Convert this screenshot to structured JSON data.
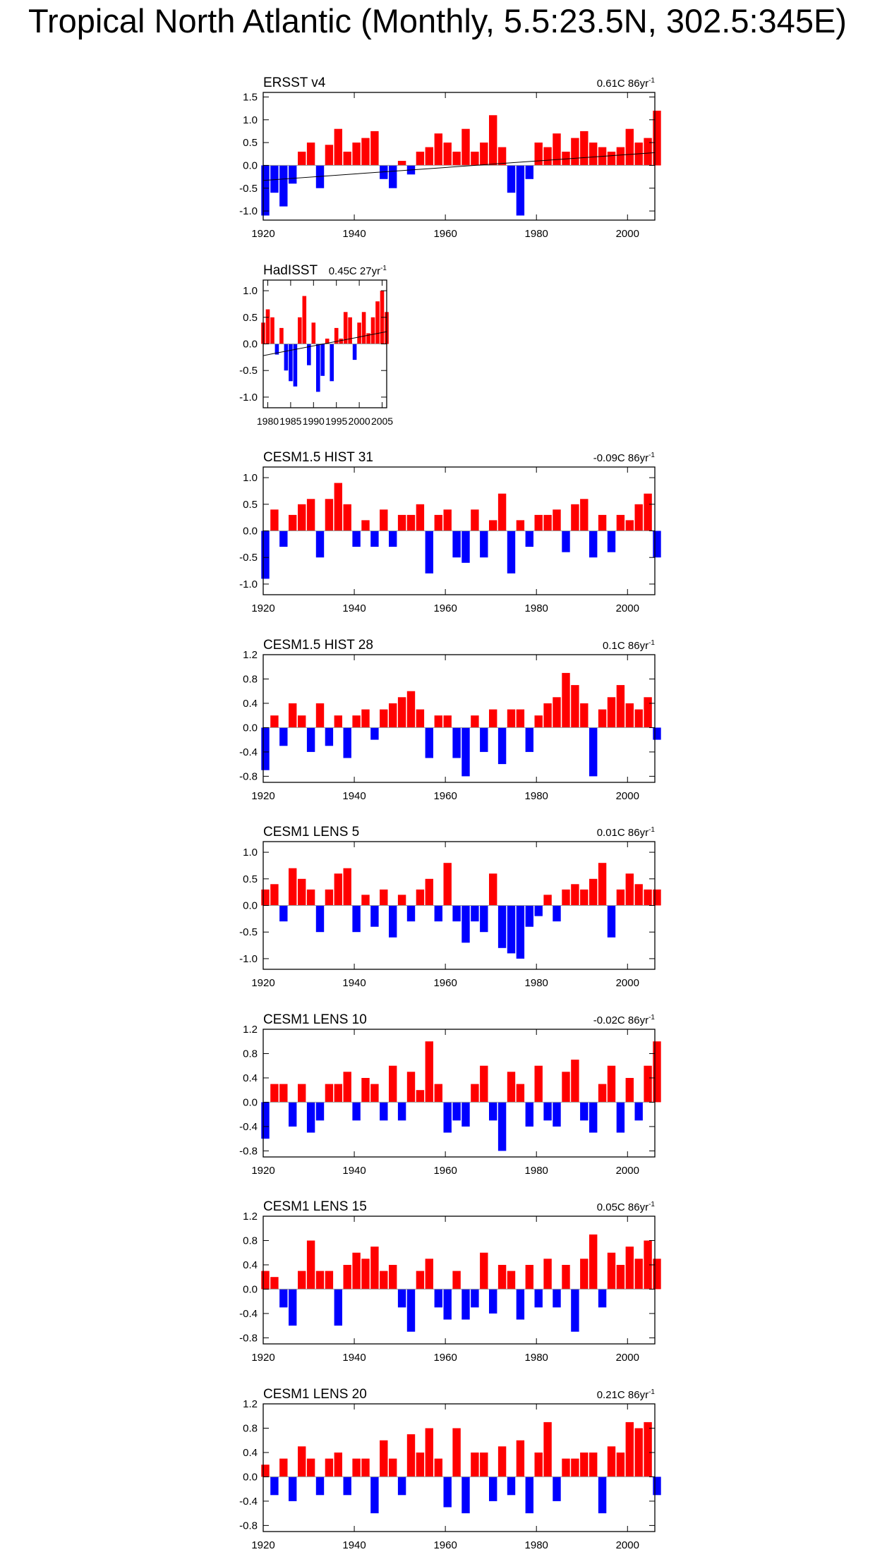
{
  "figure_title": "Tropical North Atlantic (Monthly, 5.5:23.5N, 302.5:345E)",
  "colors": {
    "positive": "#ff0000",
    "negative": "#0000ff",
    "axis": "#000000",
    "zero_line": "#999999"
  },
  "chart_data": [
    {
      "type": "area",
      "title": "ERSST v4",
      "trend_label": {
        "value": "0.61C 86yr",
        "exponent": "-1"
      },
      "xlim": [
        1920,
        2006
      ],
      "xticks": [
        1920,
        1940,
        1960,
        1980,
        2000
      ],
      "ylim": [
        -1.2,
        1.6
      ],
      "yticks": [
        -1.0,
        -0.5,
        0.0,
        0.5,
        1.0,
        1.5
      ],
      "ytick_labels": [
        "-1.0",
        "-0.5",
        "0.0",
        "0.5",
        "1.0",
        "1.5"
      ],
      "trend_line": {
        "x": [
          1920,
          2006
        ],
        "y": [
          -0.33,
          0.28
        ]
      },
      "series": [
        {
          "x": [
            1920,
            1922,
            1924,
            1926,
            1928,
            1930,
            1932,
            1934,
            1936,
            1938,
            1940,
            1942,
            1944,
            1946,
            1948,
            1950,
            1952,
            1954,
            1956,
            1958,
            1960,
            1962,
            1964,
            1966,
            1968,
            1970,
            1972,
            1974,
            1976,
            1978,
            1980,
            1982,
            1984,
            1986,
            1988,
            1990,
            1992,
            1994,
            1996,
            1998,
            2000,
            2002,
            2004,
            2006
          ],
          "y": [
            -1.1,
            -0.6,
            -0.9,
            -0.4,
            0.3,
            0.5,
            -0.5,
            0.45,
            0.8,
            0.3,
            0.5,
            0.6,
            0.75,
            -0.3,
            -0.5,
            0.1,
            -0.2,
            0.3,
            0.4,
            0.7,
            0.5,
            0.3,
            0.8,
            0.3,
            0.5,
            1.1,
            0.4,
            -0.6,
            -1.1,
            -0.3,
            0.5,
            0.4,
            0.7,
            0.3,
            0.6,
            0.75,
            0.5,
            0.4,
            0.3,
            0.4,
            0.8,
            0.5,
            0.6,
            1.2
          ]
        }
      ]
    },
    {
      "type": "area",
      "title": "HadISST",
      "trend_label": {
        "value": "0.45C 27yr",
        "exponent": "-1"
      },
      "xlim": [
        1979,
        2006
      ],
      "xticks": [
        1980,
        1985,
        1990,
        1995,
        2000,
        2005
      ],
      "ylim": [
        -1.2,
        1.2
      ],
      "yticks": [
        -1.0,
        -0.5,
        0.0,
        0.5,
        1.0
      ],
      "ytick_labels": [
        "-1.0",
        "-0.5",
        "0.0",
        "0.5",
        "1.0"
      ],
      "trend_line": {
        "x": [
          1979,
          2006
        ],
        "y": [
          -0.22,
          0.23
        ]
      },
      "series": [
        {
          "x": [
            1979,
            1980,
            1981,
            1982,
            1983,
            1984,
            1985,
            1986,
            1987,
            1988,
            1989,
            1990,
            1991,
            1992,
            1993,
            1994,
            1995,
            1996,
            1997,
            1998,
            1999,
            2000,
            2001,
            2002,
            2003,
            2004,
            2005,
            2006
          ],
          "y": [
            0.4,
            0.65,
            0.5,
            -0.2,
            0.3,
            -0.5,
            -0.7,
            -0.8,
            0.5,
            0.9,
            -0.4,
            0.4,
            -0.9,
            -0.6,
            0.1,
            -0.7,
            0.3,
            0.1,
            0.6,
            0.5,
            -0.3,
            0.4,
            0.6,
            0.2,
            0.5,
            0.8,
            1.0,
            0.6
          ]
        }
      ]
    },
    {
      "type": "area",
      "title": "CESM1.5 HIST 31",
      "trend_label": {
        "value": "-0.09C 86yr",
        "exponent": "-1"
      },
      "xlim": [
        1920,
        2006
      ],
      "xticks": [
        1920,
        1940,
        1960,
        1980,
        2000
      ],
      "ylim": [
        -1.2,
        1.2
      ],
      "yticks": [
        -1.0,
        -0.5,
        0.0,
        0.5,
        1.0
      ],
      "ytick_labels": [
        "-1.0",
        "-0.5",
        "0.0",
        "0.5",
        "1.0"
      ],
      "series": [
        {
          "x": [
            1920,
            1922,
            1924,
            1926,
            1928,
            1930,
            1932,
            1934,
            1936,
            1938,
            1940,
            1942,
            1944,
            1946,
            1948,
            1950,
            1952,
            1954,
            1956,
            1958,
            1960,
            1962,
            1964,
            1966,
            1968,
            1970,
            1972,
            1974,
            1976,
            1978,
            1980,
            1982,
            1984,
            1986,
            1988,
            1990,
            1992,
            1994,
            1996,
            1998,
            2000,
            2002,
            2004,
            2006
          ],
          "y": [
            -0.9,
            0.4,
            -0.3,
            0.3,
            0.5,
            0.6,
            -0.5,
            0.6,
            0.9,
            0.5,
            -0.3,
            0.2,
            -0.3,
            0.4,
            -0.3,
            0.3,
            0.3,
            0.5,
            -0.8,
            0.3,
            0.4,
            -0.5,
            -0.6,
            0.4,
            -0.5,
            0.2,
            0.7,
            -0.8,
            0.2,
            -0.3,
            0.3,
            0.3,
            0.4,
            -0.4,
            0.5,
            0.6,
            -0.5,
            0.3,
            -0.4,
            0.3,
            0.2,
            0.5,
            0.7,
            -0.5
          ]
        }
      ]
    },
    {
      "type": "area",
      "title": "CESM1.5 HIST 28",
      "trend_label": {
        "value": "0.1C 86yr",
        "exponent": "-1"
      },
      "xlim": [
        1920,
        2006
      ],
      "xticks": [
        1920,
        1940,
        1960,
        1980,
        2000
      ],
      "ylim": [
        -0.9,
        1.2
      ],
      "yticks": [
        -0.8,
        -0.4,
        0.0,
        0.4,
        0.8,
        1.2
      ],
      "ytick_labels": [
        "-0.8",
        "-0.4",
        "0.0",
        "0.4",
        "0.8",
        "1.2"
      ],
      "series": [
        {
          "x": [
            1920,
            1922,
            1924,
            1926,
            1928,
            1930,
            1932,
            1934,
            1936,
            1938,
            1940,
            1942,
            1944,
            1946,
            1948,
            1950,
            1952,
            1954,
            1956,
            1958,
            1960,
            1962,
            1964,
            1966,
            1968,
            1970,
            1972,
            1974,
            1976,
            1978,
            1980,
            1982,
            1984,
            1986,
            1988,
            1990,
            1992,
            1994,
            1996,
            1998,
            2000,
            2002,
            2004,
            2006
          ],
          "y": [
            -0.7,
            0.2,
            -0.3,
            0.4,
            0.2,
            -0.4,
            0.4,
            -0.3,
            0.2,
            -0.5,
            0.2,
            0.3,
            -0.2,
            0.3,
            0.4,
            0.5,
            0.6,
            0.3,
            -0.5,
            0.2,
            0.2,
            -0.5,
            -0.8,
            0.2,
            -0.4,
            0.3,
            -0.6,
            0.3,
            0.3,
            -0.4,
            0.2,
            0.4,
            0.5,
            0.9,
            0.7,
            0.4,
            -0.8,
            0.3,
            0.5,
            0.7,
            0.4,
            0.3,
            0.5,
            -0.2
          ]
        }
      ]
    },
    {
      "type": "area",
      "title": "CESM1 LENS 5",
      "trend_label": {
        "value": "0.01C 86yr",
        "exponent": "-1"
      },
      "xlim": [
        1920,
        2006
      ],
      "xticks": [
        1920,
        1940,
        1960,
        1980,
        2000
      ],
      "ylim": [
        -1.2,
        1.2
      ],
      "yticks": [
        -1.0,
        -0.5,
        0.0,
        0.5,
        1.0
      ],
      "ytick_labels": [
        "-1.0",
        "-0.5",
        "0.0",
        "0.5",
        "1.0"
      ],
      "series": [
        {
          "x": [
            1920,
            1922,
            1924,
            1926,
            1928,
            1930,
            1932,
            1934,
            1936,
            1938,
            1940,
            1942,
            1944,
            1946,
            1948,
            1950,
            1952,
            1954,
            1956,
            1958,
            1960,
            1962,
            1964,
            1966,
            1968,
            1970,
            1972,
            1974,
            1976,
            1978,
            1980,
            1982,
            1984,
            1986,
            1988,
            1990,
            1992,
            1994,
            1996,
            1998,
            2000,
            2002,
            2004,
            2006
          ],
          "y": [
            0.3,
            0.4,
            -0.3,
            0.7,
            0.5,
            0.3,
            -0.5,
            0.3,
            0.6,
            0.7,
            -0.5,
            0.2,
            -0.4,
            0.3,
            -0.6,
            0.2,
            -0.3,
            0.3,
            0.5,
            -0.3,
            0.8,
            -0.3,
            -0.7,
            -0.3,
            -0.5,
            0.6,
            -0.8,
            -0.9,
            -1.0,
            -0.4,
            -0.2,
            0.2,
            -0.3,
            0.3,
            0.4,
            0.3,
            0.5,
            0.8,
            -0.6,
            0.3,
            0.6,
            0.4,
            0.3,
            0.3
          ]
        }
      ]
    },
    {
      "type": "area",
      "title": "CESM1 LENS 10",
      "trend_label": {
        "value": "-0.02C 86yr",
        "exponent": "-1"
      },
      "xlim": [
        1920,
        2006
      ],
      "xticks": [
        1920,
        1940,
        1960,
        1980,
        2000
      ],
      "ylim": [
        -0.9,
        1.2
      ],
      "yticks": [
        -0.8,
        -0.4,
        0.0,
        0.4,
        0.8,
        1.2
      ],
      "ytick_labels": [
        "-0.8",
        "-0.4",
        "0.0",
        "0.4",
        "0.8",
        "1.2"
      ],
      "series": [
        {
          "x": [
            1920,
            1922,
            1924,
            1926,
            1928,
            1930,
            1932,
            1934,
            1936,
            1938,
            1940,
            1942,
            1944,
            1946,
            1948,
            1950,
            1952,
            1954,
            1956,
            1958,
            1960,
            1962,
            1964,
            1966,
            1968,
            1970,
            1972,
            1974,
            1976,
            1978,
            1980,
            1982,
            1984,
            1986,
            1988,
            1990,
            1992,
            1994,
            1996,
            1998,
            2000,
            2002,
            2004,
            2006
          ],
          "y": [
            -0.6,
            0.3,
            0.3,
            -0.4,
            0.3,
            -0.5,
            -0.3,
            0.3,
            0.3,
            0.5,
            -0.3,
            0.4,
            0.3,
            -0.3,
            0.6,
            -0.3,
            0.5,
            0.2,
            1.0,
            0.3,
            -0.5,
            -0.3,
            -0.4,
            0.3,
            0.6,
            -0.3,
            -0.8,
            0.5,
            0.3,
            -0.4,
            0.6,
            -0.3,
            -0.4,
            0.5,
            0.7,
            -0.3,
            -0.5,
            0.3,
            0.6,
            -0.5,
            0.4,
            -0.3,
            0.6,
            1.0
          ]
        }
      ]
    },
    {
      "type": "area",
      "title": "CESM1 LENS 15",
      "trend_label": {
        "value": "0.05C 86yr",
        "exponent": "-1"
      },
      "xlim": [
        1920,
        2006
      ],
      "xticks": [
        1920,
        1940,
        1960,
        1980,
        2000
      ],
      "ylim": [
        -0.9,
        1.2
      ],
      "yticks": [
        -0.8,
        -0.4,
        0.0,
        0.4,
        0.8,
        1.2
      ],
      "ytick_labels": [
        "-0.8",
        "-0.4",
        "0.0",
        "0.4",
        "0.8",
        "1.2"
      ],
      "series": [
        {
          "x": [
            1920,
            1922,
            1924,
            1926,
            1928,
            1930,
            1932,
            1934,
            1936,
            1938,
            1940,
            1942,
            1944,
            1946,
            1948,
            1950,
            1952,
            1954,
            1956,
            1958,
            1960,
            1962,
            1964,
            1966,
            1968,
            1970,
            1972,
            1974,
            1976,
            1978,
            1980,
            1982,
            1984,
            1986,
            1988,
            1990,
            1992,
            1994,
            1996,
            1998,
            2000,
            2002,
            2004,
            2006
          ],
          "y": [
            0.3,
            0.2,
            -0.3,
            -0.6,
            0.3,
            0.8,
            0.3,
            0.3,
            -0.6,
            0.4,
            0.6,
            0.5,
            0.7,
            0.3,
            0.4,
            -0.3,
            -0.7,
            0.3,
            0.5,
            -0.3,
            -0.5,
            0.3,
            -0.5,
            -0.3,
            0.6,
            -0.4,
            0.4,
            0.3,
            -0.5,
            0.4,
            -0.3,
            0.5,
            -0.3,
            0.4,
            -0.7,
            0.5,
            0.9,
            -0.3,
            0.6,
            0.4,
            0.7,
            0.5,
            0.8,
            0.5
          ]
        }
      ]
    },
    {
      "type": "area",
      "title": "CESM1 LENS 20",
      "trend_label": {
        "value": "0.21C 86yr",
        "exponent": "-1"
      },
      "xlim": [
        1920,
        2006
      ],
      "xticks": [
        1920,
        1940,
        1960,
        1980,
        2000
      ],
      "ylim": [
        -0.9,
        1.2
      ],
      "yticks": [
        -0.8,
        -0.4,
        0.0,
        0.4,
        0.8,
        1.2
      ],
      "ytick_labels": [
        "-0.8",
        "-0.4",
        "0.0",
        "0.4",
        "0.8",
        "1.2"
      ],
      "series": [
        {
          "x": [
            1920,
            1922,
            1924,
            1926,
            1928,
            1930,
            1932,
            1934,
            1936,
            1938,
            1940,
            1942,
            1944,
            1946,
            1948,
            1950,
            1952,
            1954,
            1956,
            1958,
            1960,
            1962,
            1964,
            1966,
            1968,
            1970,
            1972,
            1974,
            1976,
            1978,
            1980,
            1982,
            1984,
            1986,
            1988,
            1990,
            1992,
            1994,
            1996,
            1998,
            2000,
            2002,
            2004,
            2006
          ],
          "y": [
            0.2,
            -0.3,
            0.3,
            -0.4,
            0.5,
            0.3,
            -0.3,
            0.3,
            0.4,
            -0.3,
            0.3,
            0.3,
            -0.6,
            0.6,
            0.3,
            -0.3,
            0.7,
            0.4,
            0.8,
            0.3,
            -0.5,
            0.8,
            -0.6,
            0.4,
            0.4,
            -0.4,
            0.5,
            -0.3,
            0.6,
            -0.6,
            0.4,
            0.9,
            -0.4,
            0.3,
            0.3,
            0.4,
            0.4,
            -0.6,
            0.5,
            0.4,
            0.9,
            0.8,
            0.9,
            -0.3
          ]
        }
      ]
    }
  ]
}
